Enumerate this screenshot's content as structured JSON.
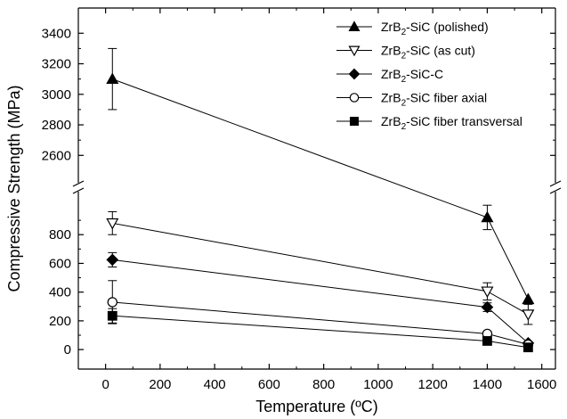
{
  "chart_data": {
    "type": "line",
    "xlabel": "Temperature (ºC)",
    "ylabel": "Compressive Strength (MPa)",
    "xlim": [
      -100,
      1650
    ],
    "x_ticks": [
      "0",
      "200",
      "400",
      "600",
      "800",
      "1000",
      "1200",
      "1400",
      "1600"
    ],
    "y_axis_break": true,
    "y_lower_range": [
      -80,
      1000
    ],
    "y_upper_range": [
      2520,
      3460
    ],
    "y_ticks_lower": [
      "0",
      "200",
      "400",
      "600",
      "800"
    ],
    "y_ticks_upper": [
      "2600",
      "2800",
      "3000",
      "3200",
      "3400"
    ],
    "grid": false,
    "legend_position": "top-right",
    "series": [
      {
        "name": "ZrB2-SiC (polished)",
        "label_main": "ZrB",
        "label_sub": "2",
        "label_rest": "-SiC (polished)",
        "marker": "triangle-up-filled",
        "x": [
          25,
          1400,
          1550
        ],
        "y": [
          3100,
          920,
          350
        ],
        "err": [
          200,
          85,
          0
        ]
      },
      {
        "name": "ZrB2-SiC (as cut)",
        "label_main": "ZrB",
        "label_sub": "2",
        "label_rest": "-SiC (as cut)",
        "marker": "triangle-down-open",
        "x": [
          25,
          1400,
          1550
        ],
        "y": [
          880,
          405,
          245
        ],
        "err": [
          80,
          60,
          70
        ]
      },
      {
        "name": "ZrB2-SiC-C",
        "label_main": "ZrB",
        "label_sub": "2",
        "label_rest": "-SiC-C",
        "marker": "diamond-filled",
        "x": [
          25,
          1400,
          1550
        ],
        "y": [
          625,
          295,
          45
        ],
        "err": [
          50,
          30,
          10
        ]
      },
      {
        "name": "ZrB2-SiC fiber axial",
        "label_main": "ZrB",
        "label_sub": "2",
        "label_rest": "-SiC fiber axial",
        "marker": "circle-open",
        "x": [
          25,
          1400,
          1550
        ],
        "y": [
          330,
          110,
          35
        ],
        "err": [
          150,
          0,
          0
        ]
      },
      {
        "name": "ZrB2-SiC fiber transversal",
        "label_main": "ZrB",
        "label_sub": "2",
        "label_rest": "-SiC fiber transversal",
        "marker": "square-filled",
        "x": [
          25,
          1400,
          1550
        ],
        "y": [
          235,
          60,
          15
        ],
        "err": [
          50,
          0,
          0
        ]
      }
    ]
  }
}
